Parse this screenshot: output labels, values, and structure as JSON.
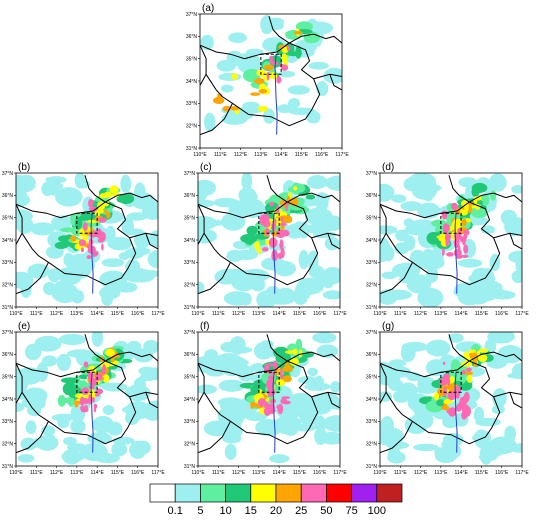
{
  "panels": [
    {
      "label": "(a)"
    },
    {
      "label": "(b)"
    },
    {
      "label": "(c)"
    },
    {
      "label": "(d)"
    },
    {
      "label": "(e)"
    },
    {
      "label": "(f)"
    },
    {
      "label": "(g)"
    }
  ],
  "axes": {
    "lon_ticks": [
      "110°E",
      "111°E",
      "112°E",
      "113°E",
      "114°E",
      "115°E",
      "116°E",
      "117°E"
    ],
    "lat_ticks": [
      "37°N",
      "36°N",
      "35°N",
      "34°N",
      "33°N",
      "32°N",
      "31°N"
    ],
    "lon_range": [
      110,
      117
    ],
    "lat_range": [
      31,
      37
    ]
  },
  "colorbar": {
    "levels": [
      "0.1",
      "5",
      "10",
      "15",
      "20",
      "25",
      "50",
      "75",
      "100"
    ],
    "colors": [
      "#ffffff",
      "#9ef0f0",
      "#5ef0a0",
      "#20c878",
      "#ffff00",
      "#ffa500",
      "#ff69b4",
      "#ff0000",
      "#a020f0",
      "#c02020"
    ]
  },
  "colors": {
    "boundary": "#000000",
    "river": "#1f3fd0",
    "light_rain": "#9ef0f0",
    "moderate": "#5ef0a0",
    "heavy": "#20c878",
    "very_heavy": "#ffff00",
    "storm": "#ffa500",
    "extreme": "#ff69b4"
  },
  "focus_box": {
    "lon": [
      113,
      114
    ],
    "lat": [
      34.3,
      35.2
    ]
  }
}
